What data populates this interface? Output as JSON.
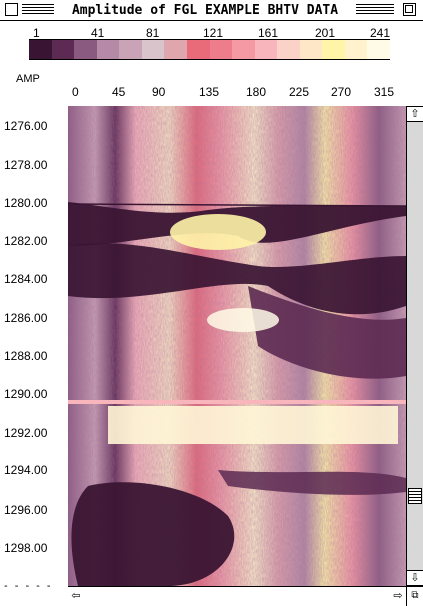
{
  "window": {
    "title": "Amplitude of FGL EXAMPLE BHTV DATA"
  },
  "colorscale": {
    "tick_labels": [
      "1",
      "41",
      "81",
      "121",
      "161",
      "201",
      "241"
    ],
    "colors": [
      "#3a1533",
      "#5c2a52",
      "#8a5a80",
      "#b48aa6",
      "#c9a3b6",
      "#d9c4cc",
      "#e0a6ad",
      "#e96a78",
      "#ee7d8b",
      "#f59aa4",
      "#f8b5bc",
      "#fbd2c7",
      "#fde7c6",
      "#fff4a8",
      "#fff2cc",
      "#fffbe6"
    ]
  },
  "unit_label": "AMP",
  "x_axis": {
    "ticks": [
      "0",
      "45",
      "90",
      "135",
      "180",
      "225",
      "270",
      "315"
    ]
  },
  "y_axis": {
    "ticks": [
      "1276.00",
      "1278.00",
      "1280.00",
      "1282.00",
      "1284.00",
      "1286.00",
      "1288.00",
      "1290.00",
      "1292.00",
      "1294.00",
      "1296.00",
      "1298.00"
    ],
    "bottom_marker": "- - - - -"
  },
  "scroll": {
    "up_icon": "⇧",
    "down_icon": "⇩",
    "left_icon": "⇦",
    "right_icon": "⇨",
    "grow_icon": "⧉"
  }
}
